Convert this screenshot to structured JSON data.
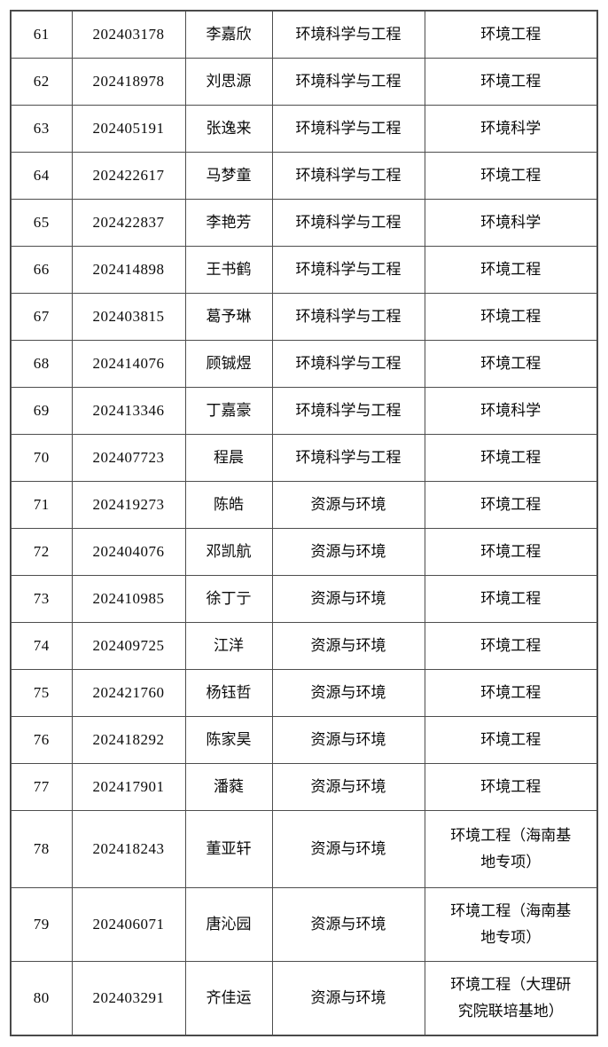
{
  "page": {
    "background_color": "#ffffff",
    "border_color": "#4d4d4d",
    "text_color": "#0a0a0a"
  },
  "table": {
    "row_range": "61-80",
    "rows": [
      [
        "61",
        "202403178",
        "李嘉欣",
        "环境科学与工程",
        "环境工程"
      ],
      [
        "62",
        "202418978",
        "刘思源",
        "环境科学与工程",
        "环境工程"
      ],
      [
        "63",
        "202405191",
        "张逸来",
        "环境科学与工程",
        "环境科学"
      ],
      [
        "64",
        "202422617",
        "马梦童",
        "环境科学与工程",
        "环境工程"
      ],
      [
        "65",
        "202422837",
        "李艳芳",
        "环境科学与工程",
        "环境科学"
      ],
      [
        "66",
        "202414898",
        "王书鹤",
        "环境科学与工程",
        "环境工程"
      ],
      [
        "67",
        "202403815",
        "葛予琳",
        "环境科学与工程",
        "环境工程"
      ],
      [
        "68",
        "202414076",
        "顾铖煜",
        "环境科学与工程",
        "环境工程"
      ],
      [
        "69",
        "202413346",
        "丁嘉豪",
        "环境科学与工程",
        "环境科学"
      ],
      [
        "70",
        "202407723",
        "程晨",
        "环境科学与工程",
        "环境工程"
      ],
      [
        "71",
        "202419273",
        "陈皓",
        "资源与环境",
        "环境工程"
      ],
      [
        "72",
        "202404076",
        "邓凯航",
        "资源与环境",
        "环境工程"
      ],
      [
        "73",
        "202410985",
        "徐丁亍",
        "资源与环境",
        "环境工程"
      ],
      [
        "74",
        "202409725",
        "江洋",
        "资源与环境",
        "环境工程"
      ],
      [
        "75",
        "202421760",
        "杨钰哲",
        "资源与环境",
        "环境工程"
      ],
      [
        "76",
        "202418292",
        "陈家昊",
        "资源与环境",
        "环境工程"
      ],
      [
        "77",
        "202417901",
        "潘蕤",
        "资源与环境",
        "环境工程"
      ],
      [
        "78",
        "202418243",
        "董亚轩",
        "资源与环境",
        "环境工程（海南基\n地专项）"
      ],
      [
        "79",
        "202406071",
        "唐沁园",
        "资源与环境",
        "环境工程（海南基\n地专项）"
      ],
      [
        "80",
        "202403291",
        "齐佳运",
        "资源与环境",
        "环境工程（大理研\n究院联培基地）"
      ]
    ]
  }
}
